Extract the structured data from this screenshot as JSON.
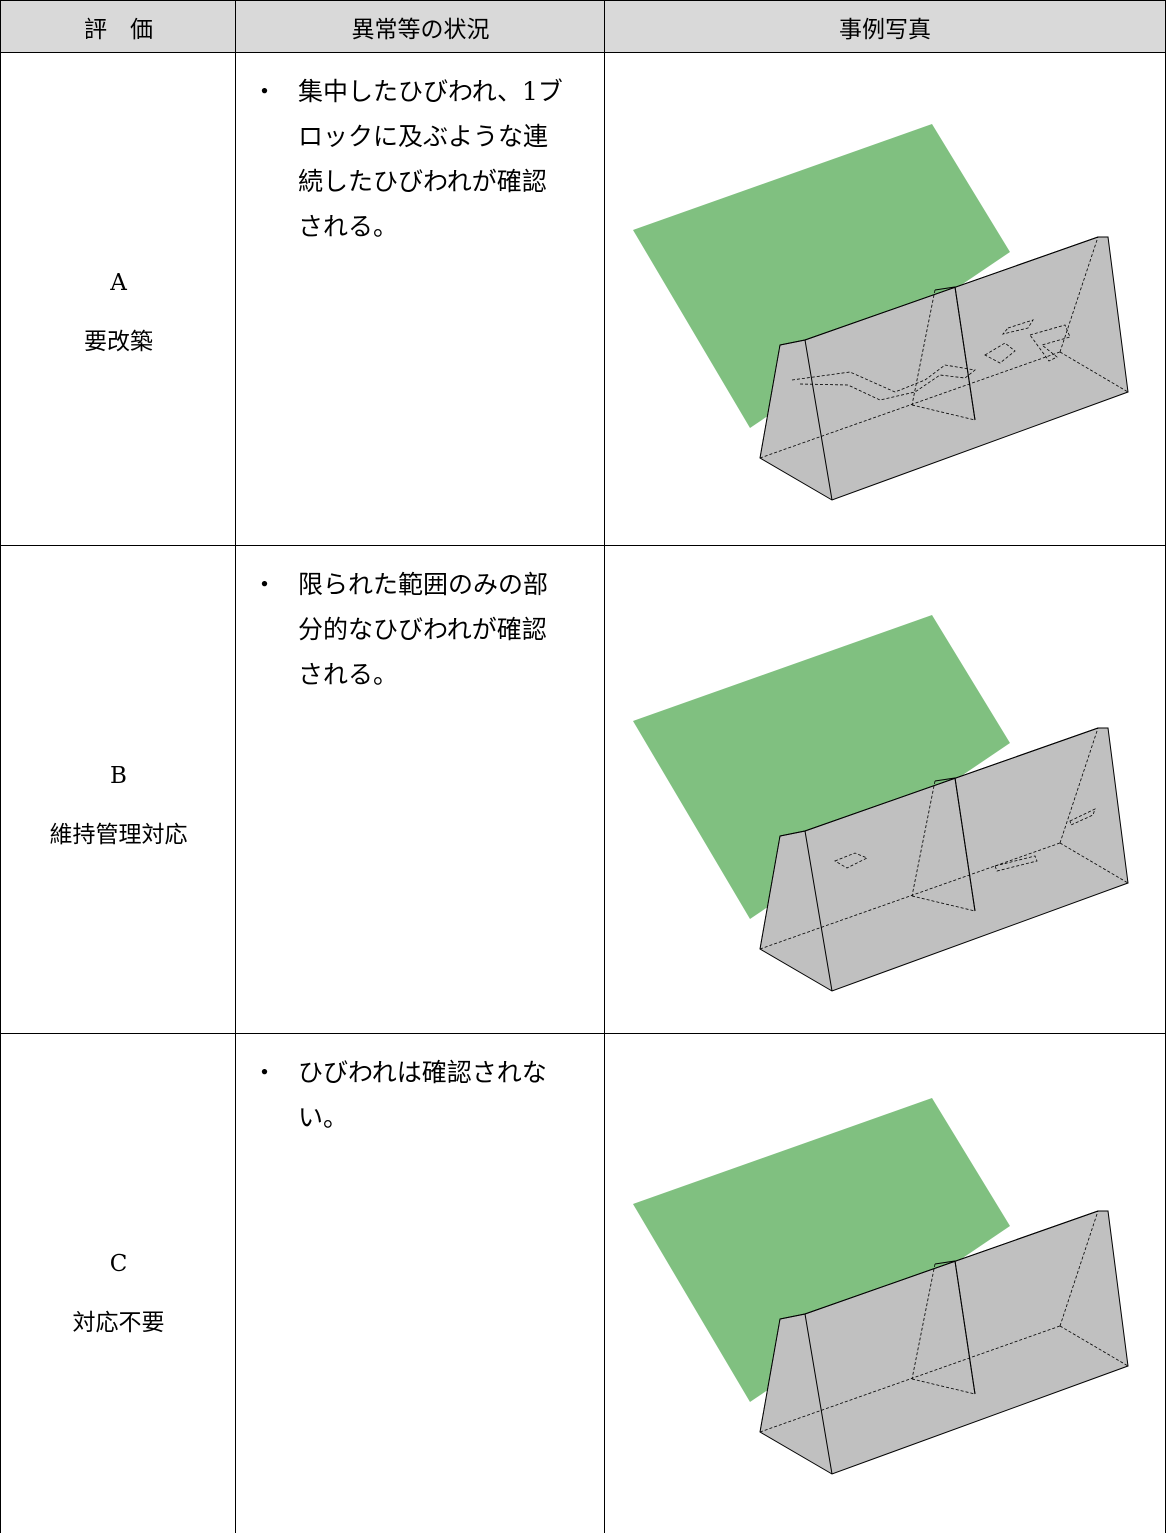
{
  "header": {
    "columns": [
      "評　価",
      "異常等の状況",
      "事例写真"
    ]
  },
  "rows": [
    {
      "grade": "A",
      "label": "要改築",
      "bullet": "・",
      "description": [
        "集中したひびわれ、1ブ",
        "ロックに及ぶような連",
        "続したひびわれが確認",
        "される。"
      ]
    },
    {
      "grade": "B",
      "label": "維持管理対応",
      "bullet": "・",
      "description": [
        "限られた範囲のみの部",
        "分的なひびわれが確認",
        "される。"
      ]
    },
    {
      "grade": "C",
      "label": "対応不要",
      "bullet": "・",
      "description": [
        "ひびわれは確認されな",
        "い。"
      ]
    }
  ]
}
